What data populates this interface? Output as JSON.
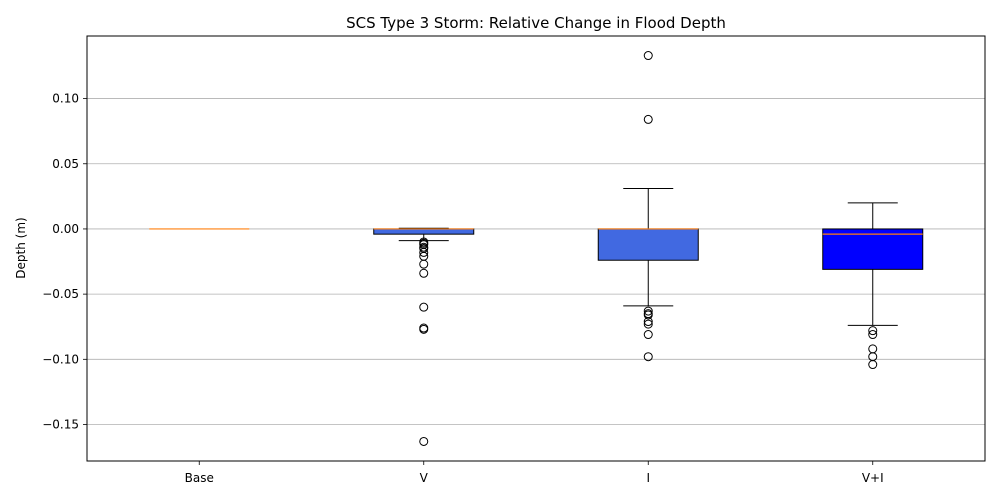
{
  "chart_data": {
    "type": "box",
    "title": "SCS Type 3 Storm: Relative Change in Flood Depth",
    "xlabel": "",
    "ylabel": "Depth (m)",
    "ylim": [
      -0.178,
      0.148
    ],
    "yticks": [
      0.1,
      0.05,
      0.0,
      -0.05,
      -0.1,
      -0.15
    ],
    "ytick_labels": [
      "0.10",
      "0.05",
      "0.00",
      "−0.05",
      "−0.10",
      "−0.15"
    ],
    "grid": "horizontal",
    "categories": [
      "Base",
      "V",
      "I",
      "V+I"
    ],
    "boxes": [
      {
        "label": "Base",
        "q1": 0.0,
        "median": 0.0,
        "q3": 0.0,
        "whislo": 0.0,
        "whishi": 0.0,
        "fliers": [],
        "color": "#4169e1",
        "median_color": "#ff7f0e"
      },
      {
        "label": "V",
        "q1": -0.004,
        "median": 0.0,
        "q3": 0.0,
        "whislo": -0.009,
        "whishi": 0.0005,
        "fliers": [
          -0.01,
          -0.011,
          -0.012,
          -0.014,
          -0.015,
          -0.018,
          -0.021,
          -0.027,
          -0.034,
          -0.06,
          -0.076,
          -0.077,
          -0.163
        ],
        "color": "#4169e1",
        "median_color": "#ff7f0e"
      },
      {
        "label": "I",
        "q1": -0.024,
        "median": 0.0,
        "q3": 0.0,
        "whislo": -0.059,
        "whishi": 0.031,
        "fliers": [
          0.133,
          0.084,
          -0.063,
          -0.065,
          -0.066,
          -0.071,
          -0.073,
          -0.081,
          -0.098
        ],
        "color": "#4169e1",
        "median_color": "#ff7f0e"
      },
      {
        "label": "V+I",
        "q1": -0.031,
        "median": -0.004,
        "q3": 0.0,
        "whislo": -0.074,
        "whishi": 0.02,
        "fliers": [
          -0.078,
          -0.081,
          -0.092,
          -0.098,
          -0.104
        ],
        "color": "#0000ff",
        "median_color": "#ff7f0e"
      }
    ]
  }
}
